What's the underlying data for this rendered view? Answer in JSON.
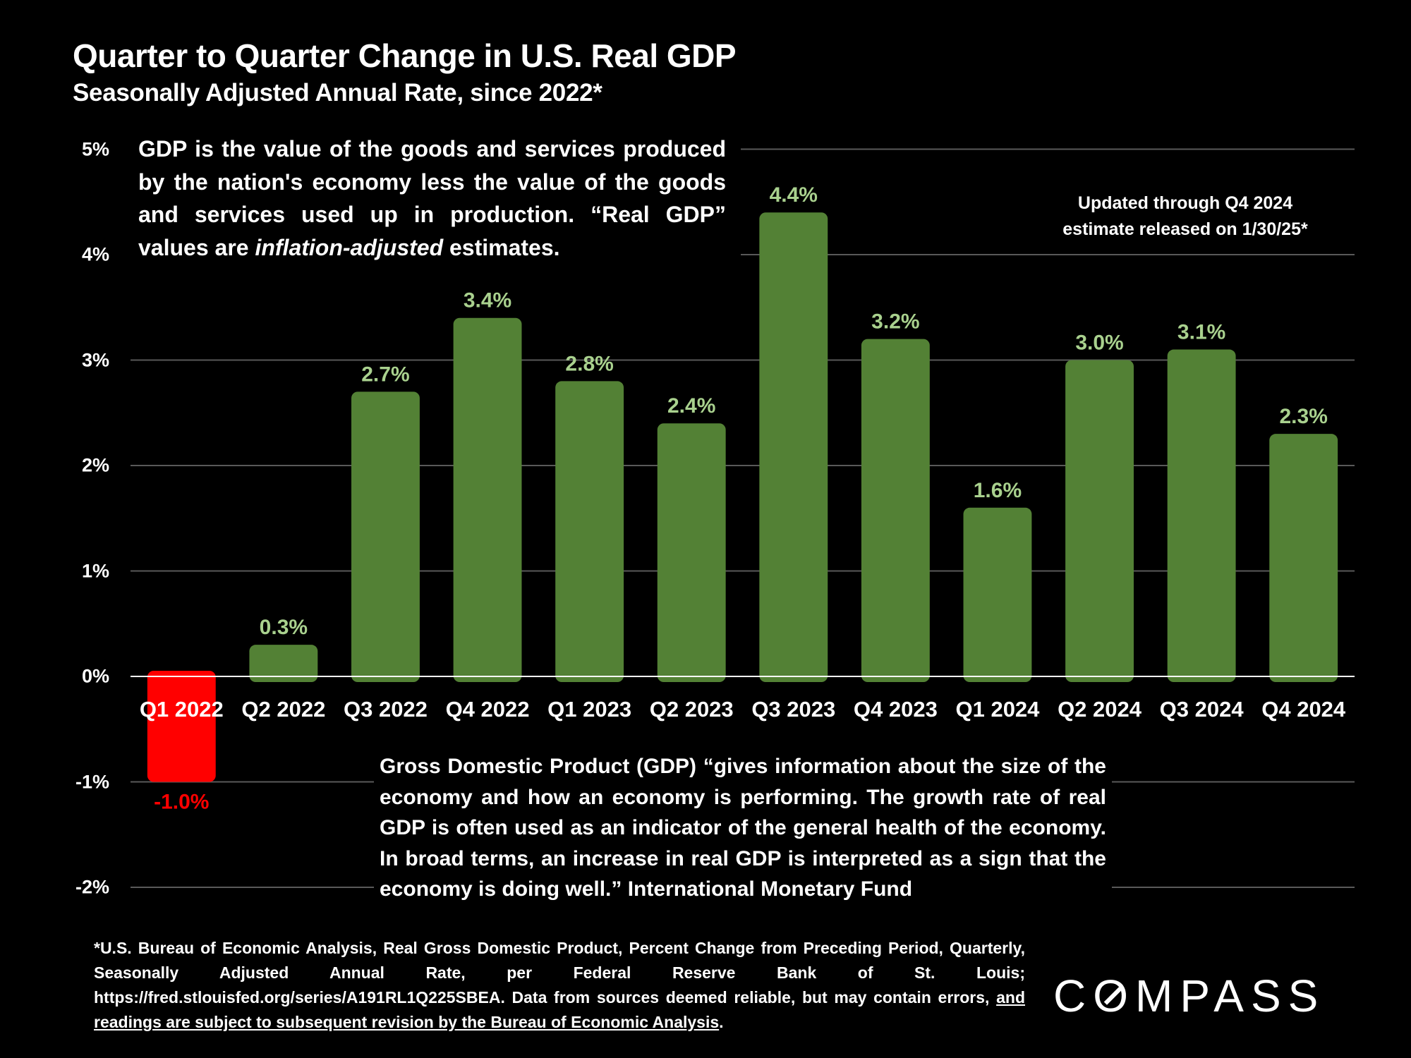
{
  "header": {
    "title": "Quarter to Quarter Change in U.S. Real GDP",
    "subtitle": "Seasonally Adjusted Annual Rate, since 2022*"
  },
  "annotations": {
    "definition_part1": "GDP is the value of the goods and services produced by the nation's economy less the value of the goods and services used up in production. “Real GDP” values are ",
    "definition_italic": "inflation-adjusted",
    "definition_part2": " estimates.",
    "updated_line1": "Updated through Q4 2024",
    "updated_line2": "estimate released on 1/30/25*",
    "imf_quote": "Gross Domestic Product (GDP) “gives information about the size of the economy and how an economy is performing. The growth rate of real GDP is often used as an indicator of the general health of the economy. In broad terms, an increase in real GDP is interpreted as a sign that the economy is doing well.” International Monetary Fund"
  },
  "footnote": {
    "text": "*U.S. Bureau of Economic Analysis, Real Gross Domestic Product, Percent Change from Preceding Period, Quarterly, Seasonally Adjusted Annual Rate, per Federal Reserve Bank of St. Louis; https://fred.stlouisfed.org/series/A191RL1Q225SBEA. Data from sources deemed reliable, but may contain errors, ",
    "underlined": "and readings are subject to subsequent revision by the Bureau of Economic Analysis",
    "end": "."
  },
  "logo": {
    "text_before": "C",
    "text_o": "O",
    "text_after": "MPASS"
  },
  "colors": {
    "positive_bar": "#538135",
    "negative_bar": "#ff0000",
    "positive_label": "#a9d18e",
    "negative_label": "#ff0000",
    "gridline": "#595959",
    "zero_line": "#ffffff",
    "background": "#000000"
  },
  "chart_data": {
    "type": "bar",
    "title": "Quarter to Quarter Change in U.S. Real GDP",
    "subtitle": "Seasonally Adjusted Annual Rate, since 2022*",
    "xlabel": "",
    "ylabel": "",
    "categories": [
      "Q1 2022",
      "Q2 2022",
      "Q3 2022",
      "Q4 2022",
      "Q1 2023",
      "Q2 2023",
      "Q3 2023",
      "Q4 2023",
      "Q1 2024",
      "Q2 2024",
      "Q3 2024",
      "Q4 2024"
    ],
    "values": [
      -1.0,
      0.3,
      2.7,
      3.4,
      2.8,
      2.4,
      4.4,
      3.2,
      1.6,
      3.0,
      3.1,
      2.3
    ],
    "data_labels": [
      "-1.0%",
      "0.3%",
      "2.7%",
      "3.4%",
      "2.8%",
      "2.4%",
      "4.4%",
      "3.2%",
      "1.6%",
      "3.0%",
      "3.1%",
      "2.3%"
    ],
    "ylim": [
      -2,
      5
    ],
    "yticks": [
      5,
      4,
      3,
      2,
      1,
      0,
      -1,
      -2
    ],
    "ytick_labels": [
      "5%",
      "4%",
      "3%",
      "2%",
      "1%",
      "0%",
      "-1%",
      "-2%"
    ],
    "grid": true,
    "legend": "none"
  }
}
